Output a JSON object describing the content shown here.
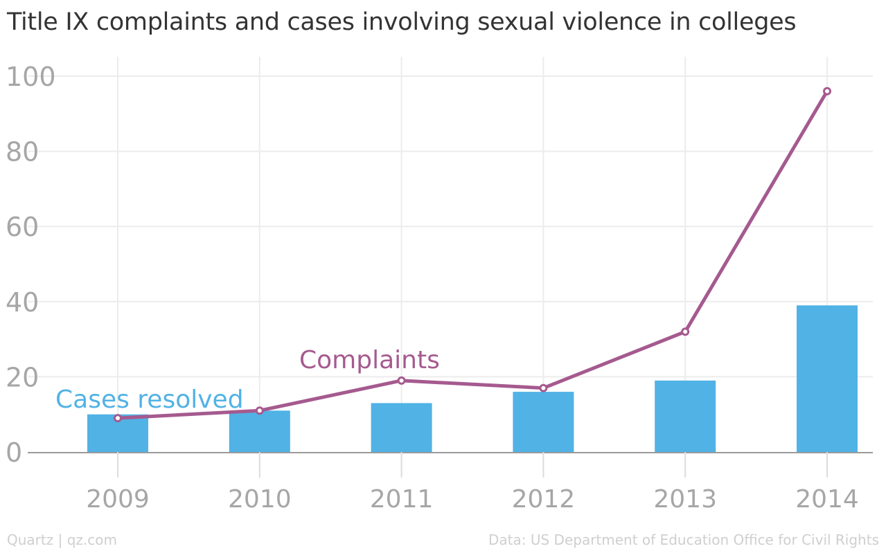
{
  "title": "Title IX complaints and cases involving sexual violence in colleges",
  "footer": {
    "credit": "Quartz | qz.com",
    "source": "Data: US Department of Education Office for Civil Rights"
  },
  "chart_data": {
    "type": "bar",
    "categories": [
      "2009",
      "2010",
      "2011",
      "2012",
      "2013",
      "2014"
    ],
    "series": [
      {
        "name": "Cases resolved",
        "type": "bar",
        "color": "#51b2e5",
        "values": [
          10,
          11,
          13,
          16,
          19,
          39
        ]
      },
      {
        "name": "Complaints",
        "type": "line",
        "color": "#a55a8f",
        "values": [
          9,
          11,
          19,
          17,
          32,
          96
        ]
      }
    ],
    "yticks": [
      "0",
      "20",
      "40",
      "60",
      "80",
      "100"
    ],
    "ylim": [
      0,
      100
    ],
    "grid": true,
    "legend": "inline labels"
  }
}
